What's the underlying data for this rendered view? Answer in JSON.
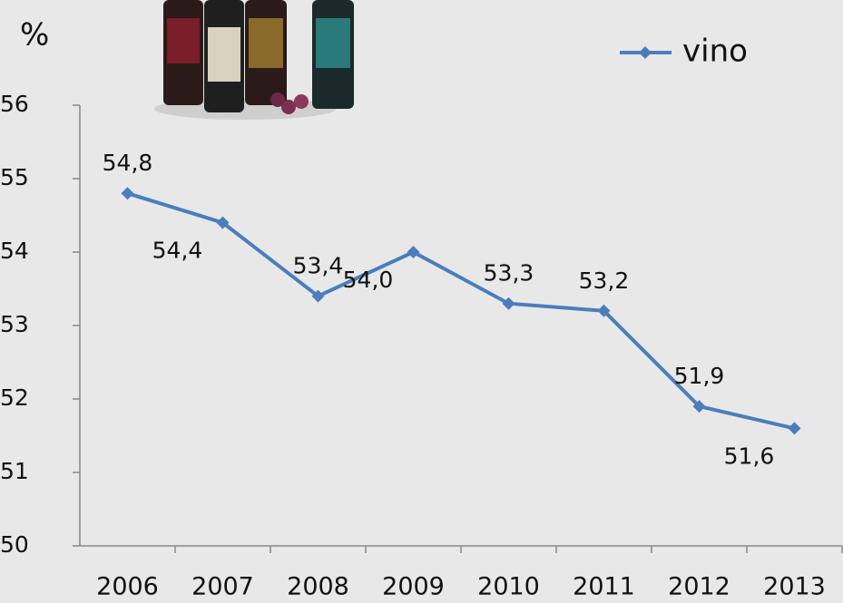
{
  "chart_data": {
    "type": "line",
    "ylabel": "%",
    "categories": [
      "2006",
      "2007",
      "2008",
      "2009",
      "2010",
      "2011",
      "2012",
      "2013"
    ],
    "series": [
      {
        "name": "vino",
        "color": "#4a7ebb",
        "values": [
          54.8,
          54.4,
          53.4,
          54.0,
          53.3,
          53.2,
          51.9,
          51.6
        ],
        "value_labels": [
          "54,8",
          "54,4",
          "53,4",
          "54,0",
          "53,3",
          "53,2",
          "51,9",
          "51,6"
        ]
      }
    ],
    "ylim": [
      50,
      56
    ],
    "yticks": [
      50,
      51,
      52,
      53,
      54,
      55,
      56
    ],
    "legend": "top-right"
  }
}
